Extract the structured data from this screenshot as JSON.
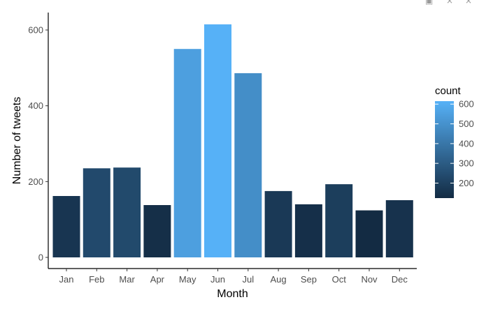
{
  "chart_data": {
    "type": "bar",
    "categories": [
      "Jan",
      "Feb",
      "Mar",
      "Apr",
      "May",
      "Jun",
      "Jul",
      "Aug",
      "Sep",
      "Oct",
      "Nov",
      "Dec"
    ],
    "values": [
      162,
      235,
      237,
      138,
      550,
      615,
      486,
      175,
      140,
      193,
      124,
      151
    ],
    "xlabel": "Month",
    "ylabel": "Number of tweets",
    "ylim": [
      0,
      640
    ],
    "yticks": [
      0,
      200,
      400,
      600
    ],
    "grid": false,
    "legend": {
      "title": "count",
      "placement": "right",
      "ticks": [
        200,
        300,
        400,
        500,
        600
      ],
      "range": [
        124,
        615
      ],
      "color_low": "#132B43",
      "color_high": "#56B1F7"
    }
  }
}
